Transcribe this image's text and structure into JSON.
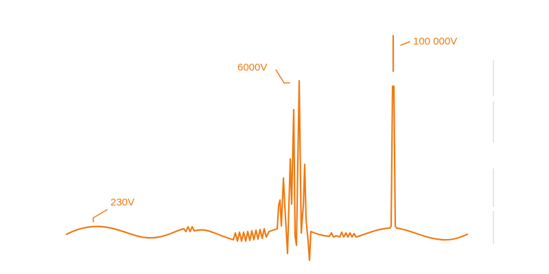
{
  "colors": {
    "waveform": "#f07a12",
    "label_text": "#f07a12",
    "scale_bar": "#e6e6e6"
  },
  "labels": {
    "nominal_voltage": "230V",
    "mid_spike_voltage": "6000V",
    "peak_spike_voltage": "100 000V"
  }
}
